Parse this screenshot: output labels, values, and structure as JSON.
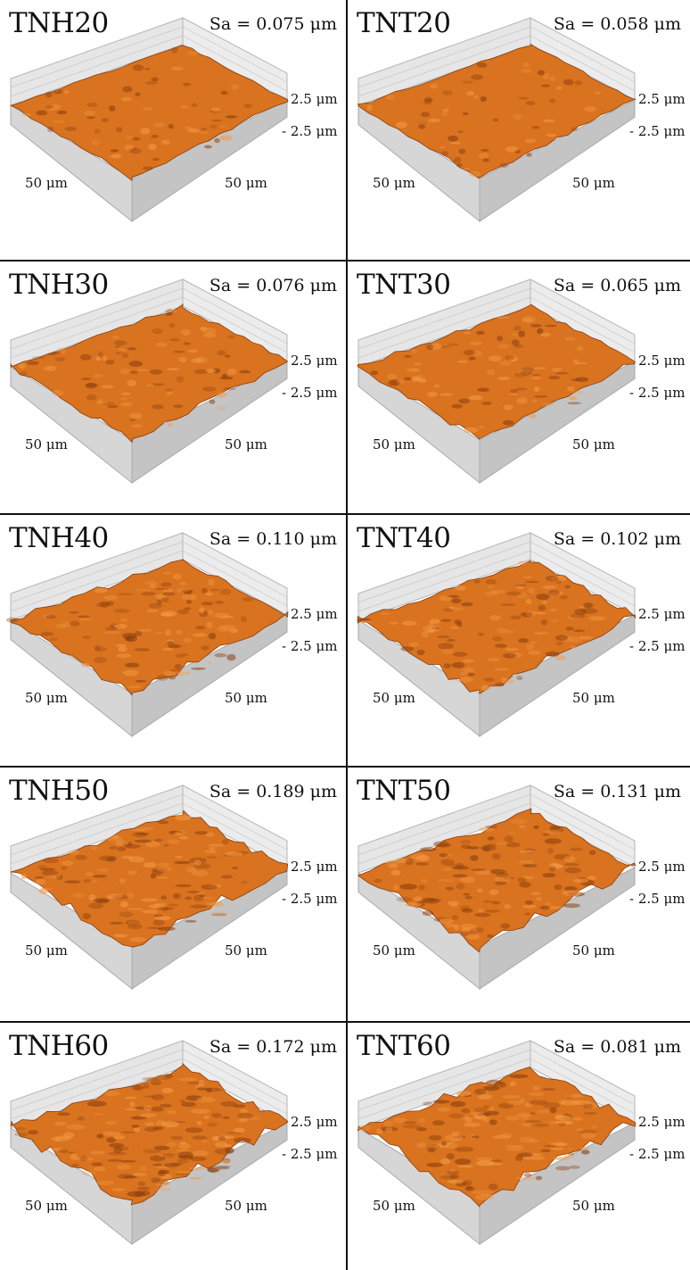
{
  "panels": [
    {
      "name": "TNH20",
      "sa": "Sa = 0.075 μm",
      "z_top": "2.5 μm",
      "z_bottom": "- 2.5 μm",
      "x_label": "50 μm",
      "y_label": "50 μm"
    },
    {
      "name": "TNT20",
      "sa": "Sa = 0.058 μm",
      "z_top": "2.5 μm",
      "z_bottom": "- 2.5 μm",
      "x_label": "50 μm",
      "y_label": "50 μm"
    },
    {
      "name": "TNH30",
      "sa": "Sa = 0.076 μm",
      "z_top": "2.5 μm",
      "z_bottom": "- 2.5 μm",
      "x_label": "50 μm",
      "y_label": "50 μm"
    },
    {
      "name": "TNT30",
      "sa": "Sa = 0.065 μm",
      "z_top": "2.5 μm",
      "z_bottom": "- 2.5 μm",
      "x_label": "50 μm",
      "y_label": "50 μm"
    },
    {
      "name": "TNH40",
      "sa": "Sa = 0.110 μm",
      "z_top": "2.5 μm",
      "z_bottom": "- 2.5 μm",
      "x_label": "50 μm",
      "y_label": "50 μm"
    },
    {
      "name": "TNT40",
      "sa": "Sa = 0.102 μm",
      "z_top": "2.5 μm",
      "z_bottom": "- 2.5 μm",
      "x_label": "50 μm",
      "y_label": "50 μm"
    },
    {
      "name": "TNH50",
      "sa": "Sa = 0.189 μm",
      "z_top": "2.5 μm",
      "z_bottom": "- 2.5 μm",
      "x_label": "50 μm",
      "y_label": "50 μm"
    },
    {
      "name": "TNT50",
      "sa": "Sa = 0.131 μm",
      "z_top": "2.5 μm",
      "z_bottom": "- 2.5 μm",
      "x_label": "50 μm",
      "y_label": "50 μm"
    },
    {
      "name": "TNH60",
      "sa": "Sa = 0.172 μm",
      "z_top": "2.5 μm",
      "z_bottom": "- 2.5 μm",
      "x_label": "50 μm",
      "y_label": "50 μm"
    },
    {
      "name": "TNT60",
      "sa": "Sa = 0.081 μm",
      "z_top": "2.5 μm",
      "z_bottom": "- 2.5 μm",
      "x_label": "50 μm",
      "y_label": "50 μm"
    }
  ],
  "colors": {
    "surface": "#d9731f",
    "surface_light": "#f59a45",
    "surface_dark": "#8a3d0d",
    "box_wall": "#d6d6d6",
    "box_floor": "#c4c4c4",
    "divider": "#111111"
  }
}
